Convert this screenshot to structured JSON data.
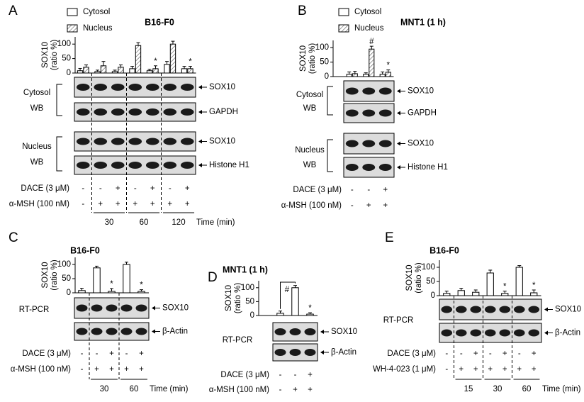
{
  "chart_data": [
    {
      "type": "bar",
      "panel": "A",
      "title": "B16-F0",
      "ylabel": [
        "SOX10",
        "(ratio %)"
      ],
      "categories": [
        null,
        null,
        null,
        null,
        null,
        null,
        null
      ],
      "series": [
        {
          "name": "Cytosol",
          "color": "#ffffff",
          "values": [
            8,
            5,
            5,
            15,
            8,
            30,
            15
          ],
          "errors": [
            8,
            5,
            5,
            8,
            5,
            10,
            8
          ],
          "annotations": [
            null,
            null,
            null,
            null,
            null,
            null,
            null
          ]
        },
        {
          "name": "Nucleus",
          "color": "#ffffff",
          "hatch": true,
          "values": [
            20,
            25,
            20,
            95,
            15,
            100,
            15
          ],
          "errors": [
            8,
            15,
            8,
            10,
            10,
            10,
            8
          ],
          "annotations": [
            null,
            null,
            null,
            null,
            "*",
            null,
            "*"
          ]
        }
      ],
      "ylim": [
        0,
        125
      ],
      "yticks": [
        0,
        50,
        100
      ],
      "legend": "top-left",
      "blots": [
        {
          "label": "Cytosol",
          "method": "WB",
          "rows": [
            "SOX10",
            "GAPDH"
          ]
        },
        {
          "label": "Nucleus",
          "method": "WB",
          "rows": [
            "SOX10",
            "Histone H1"
          ]
        }
      ],
      "treatments": [
        {
          "label": "DACE (3 μM)",
          "signs": [
            "-",
            "-",
            "+",
            "-",
            "+",
            "-",
            "+"
          ]
        },
        {
          "label": "α-MSH (100 nM)",
          "signs": [
            "-",
            "+",
            "+",
            "+",
            "+",
            "+",
            "+"
          ]
        }
      ],
      "times": [
        30,
        60,
        120
      ],
      "time_label": "Time (min)"
    },
    {
      "type": "bar",
      "panel": "B",
      "title": "MNT1 (1 h)",
      "ylabel": [
        "SOX10",
        "(ratio %)"
      ],
      "categories": [
        null,
        null,
        null
      ],
      "series": [
        {
          "name": "Cytosol",
          "color": "#ffffff",
          "values": [
            8,
            8,
            8
          ],
          "errors": [
            8,
            5,
            8
          ],
          "annotations": [
            null,
            null,
            null
          ]
        },
        {
          "name": "Nucleus",
          "color": "#ffffff",
          "hatch": true,
          "values": [
            10,
            95,
            15
          ],
          "errors": [
            8,
            10,
            8
          ],
          "annotations": [
            null,
            "#",
            "*"
          ]
        }
      ],
      "ylim": [
        0,
        125
      ],
      "yticks": [
        0,
        50,
        100
      ],
      "legend": "top-left",
      "blots": [
        {
          "label": "Cytosol",
          "method": "WB",
          "rows": [
            "SOX10",
            "GAPDH"
          ]
        },
        {
          "label": "Nucleus",
          "method": "WB",
          "rows": [
            "SOX10",
            "Histone H1"
          ]
        }
      ],
      "treatments": [
        {
          "label": "DACE (3 μM)",
          "signs": [
            "-",
            "-",
            "+"
          ]
        },
        {
          "label": "α-MSH (100 nM)",
          "signs": [
            "-",
            "+",
            "+"
          ]
        }
      ]
    },
    {
      "type": "bar",
      "panel": "C",
      "title": "B16-F0",
      "ylabel": [
        "SOX10",
        "(ratio %)"
      ],
      "categories": [
        null,
        null,
        null,
        null,
        null
      ],
      "series": [
        {
          "color": "#ffffff",
          "values": [
            8,
            88,
            5,
            100,
            5
          ],
          "errors": [
            8,
            6,
            10,
            8,
            6
          ],
          "annotations": [
            null,
            null,
            "*",
            null,
            "*"
          ]
        }
      ],
      "ylim": [
        0,
        125
      ],
      "yticks": [
        0,
        50,
        100
      ],
      "blots": [
        {
          "method": "RT-PCR",
          "rows": [
            "SOX10",
            "β-Actin"
          ]
        }
      ],
      "treatments": [
        {
          "label": "DACE (3 μM)",
          "signs": [
            "-",
            "-",
            "+",
            "-",
            "+"
          ]
        },
        {
          "label": "α-MSH (100 nM)",
          "signs": [
            "-",
            "+",
            "+",
            "+",
            "+"
          ]
        }
      ],
      "times": [
        30,
        60
      ],
      "time_label": "Time (min)"
    },
    {
      "type": "bar",
      "panel": "D",
      "title": "MNT1 (1 h)",
      "ylabel": [
        "SOX10",
        "(ratio %)"
      ],
      "categories": [
        null,
        null,
        null
      ],
      "series": [
        {
          "color": "#ffffff",
          "values": [
            8,
            100,
            5
          ],
          "errors": [
            8,
            8,
            5
          ],
          "annotations": [
            null,
            null,
            "*"
          ]
        }
      ],
      "bracket_label": "#",
      "ylim": [
        0,
        125
      ],
      "yticks": [
        0,
        50,
        100
      ],
      "blots": [
        {
          "method": "RT-PCR",
          "rows": [
            "SOX10",
            "β-Actin"
          ]
        }
      ],
      "treatments": [
        {
          "label": "DACE (3 μM)",
          "signs": [
            "-",
            "-",
            "+"
          ]
        },
        {
          "label": "α-MSH (100 nM)",
          "signs": [
            "-",
            "+",
            "+"
          ]
        }
      ]
    },
    {
      "type": "bar",
      "panel": "E",
      "title": "B16-F0",
      "ylabel": [
        "SOX10",
        "(ratio %)"
      ],
      "categories": [
        null,
        null,
        null,
        null,
        null,
        null,
        null
      ],
      "series": [
        {
          "color": "#ffffff",
          "values": [
            8,
            18,
            12,
            80,
            8,
            100,
            10
          ],
          "errors": [
            8,
            8,
            8,
            10,
            8,
            6,
            10
          ],
          "annotations": [
            null,
            null,
            null,
            null,
            "*",
            null,
            "*"
          ]
        }
      ],
      "ylim": [
        0,
        125
      ],
      "yticks": [
        0,
        50,
        100
      ],
      "blots": [
        {
          "method": "RT-PCR",
          "rows": [
            "SOX10",
            "β-Actin"
          ]
        }
      ],
      "treatments": [
        {
          "label": "DACE (3 μM)",
          "signs": [
            "-",
            "-",
            "+",
            "-",
            "+",
            "-",
            "+"
          ]
        },
        {
          "label": "WH-4-023 (1 μM)",
          "signs": [
            "-",
            "+",
            "+",
            "+",
            "+",
            "+",
            "+"
          ]
        }
      ],
      "times": [
        15,
        30,
        60
      ],
      "time_label": "Time (min)"
    }
  ]
}
